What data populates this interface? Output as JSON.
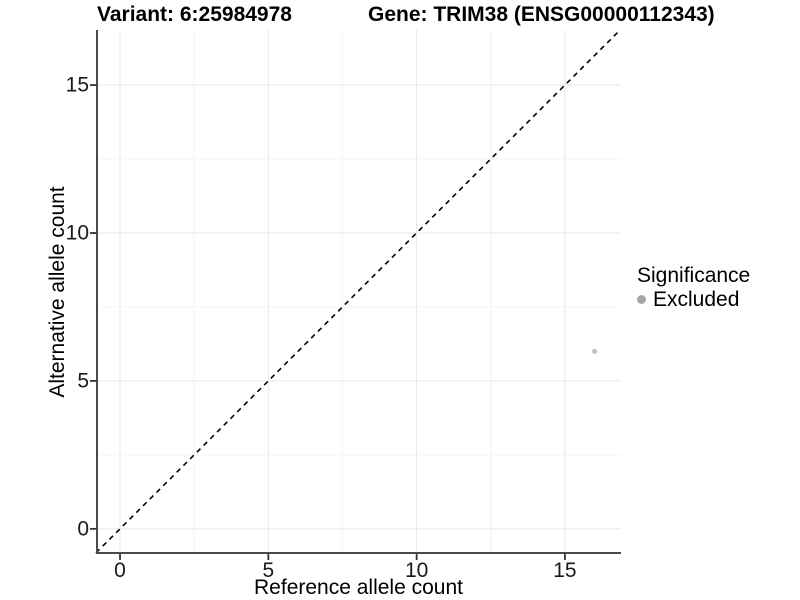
{
  "chart_data": {
    "type": "scatter",
    "title_left": "Variant: 6:25984978",
    "title_right": "Gene: TRIM38 (ENSG00000112343)",
    "xlabel": "Reference allele count",
    "ylabel": "Alternative allele count",
    "x_ticks": [
      0,
      5,
      10,
      15
    ],
    "y_ticks": [
      0,
      5,
      10,
      15
    ],
    "x_minor": [
      2.5,
      7.5,
      12.5
    ],
    "y_minor": [
      2.5,
      7.5,
      12.5
    ],
    "xlim": [
      -0.81,
      16.89
    ],
    "ylim": [
      -0.85,
      16.86
    ],
    "grid": true,
    "reference_line": {
      "kind": "identity y=x",
      "style": "dashed"
    },
    "series": [
      {
        "name": "Excluded",
        "color": "#c0c0c0",
        "points": [
          {
            "x": 16,
            "y": 6
          }
        ]
      }
    ],
    "legend": {
      "title": "Significance",
      "position": "right",
      "items": [
        {
          "label": "Excluded",
          "color": "#a6a6a6"
        }
      ]
    }
  },
  "colors": {
    "background": "#ffffff",
    "grid_major": "#e7e7e7",
    "grid_minor": "#f4f4f4",
    "axis_line": "#4a4a4a",
    "tick_mark": "#333333",
    "reference_line": "#000000"
  }
}
